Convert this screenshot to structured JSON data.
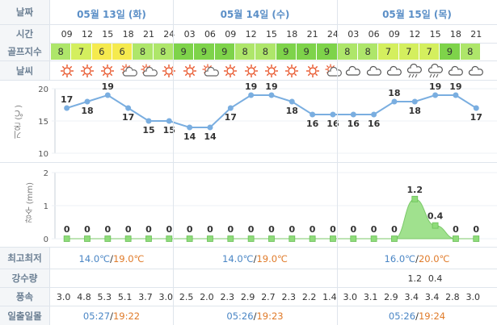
{
  "labels": {
    "date": "날짜",
    "time": "시간",
    "golf": "골프지수",
    "weather": "날씨",
    "temp_axis": "기온 (℃)",
    "rain_axis": "강수 (mm)",
    "minmax": "최고최저",
    "rain": "강수량",
    "wind": "풍속",
    "sun": "일출일몰"
  },
  "days": [
    {
      "label": "05월 13일 (화)",
      "min": "14.0℃",
      "sep": "/",
      "max": "19.0℃",
      "sunrise": "05:27",
      "sunset": "19:22"
    },
    {
      "label": "05월 14일 (수)",
      "min": "14.0℃",
      "sep": "/",
      "max": "19.0℃",
      "sunrise": "05:26",
      "sunset": "19:23"
    },
    {
      "label": "05월 15일 (목)",
      "min": "16.0℃",
      "sep": "/",
      "max": "20.0℃",
      "sunrise": "05:26",
      "sunset": "19:24"
    }
  ],
  "sun_sep": "/",
  "hours": [
    "09",
    "12",
    "15",
    "18",
    "21",
    "24",
    "03",
    "06",
    "09",
    "12",
    "15",
    "18",
    "21",
    "24",
    "03",
    "06",
    "09",
    "12",
    "15",
    "18",
    "21"
  ],
  "golf": [
    8,
    7,
    6,
    6,
    8,
    8,
    9,
    9,
    9,
    8,
    8,
    9,
    9,
    9,
    8,
    8,
    7,
    7,
    7,
    9,
    8
  ],
  "golf_colors": {
    "9": "#7ed34a",
    "8": "#aee66a",
    "7": "#d4ef5e",
    "6": "#f5ea4e"
  },
  "weather": [
    "sunny",
    "sunny",
    "sunny",
    "partly-cloudy",
    "partly-cloudy",
    "sunny",
    "sunny",
    "partly-cloudy",
    "sunny",
    "sunny",
    "sunny",
    "sunny",
    "sunny",
    "partly-cloudy",
    "cloudy",
    "cloudy",
    "cloudy",
    "rain",
    "rain",
    "cloudy",
    "cloudy"
  ],
  "wind": [
    "3.0",
    "4.8",
    "5.3",
    "5.1",
    "3.7",
    "3.0",
    "2.5",
    "2.0",
    "2.3",
    "2.9",
    "2.7",
    "2.3",
    "2.2",
    "1.4",
    "3.0",
    "3.1",
    "2.9",
    "3.4",
    "3.4",
    "2.8",
    "3.0"
  ],
  "rain_amounts": [
    "",
    "",
    "",
    "",
    "",
    "",
    "",
    "",
    "",
    "",
    "",
    "",
    "",
    "",
    "",
    "",
    "",
    "1.2",
    "0.4",
    "",
    ""
  ],
  "chart_data": [
    {
      "type": "line",
      "title": "",
      "ylabel": "기온 (℃)",
      "ylim": [
        10,
        20
      ],
      "yticks": [
        20,
        15,
        10
      ],
      "x": [
        "09",
        "12",
        "15",
        "18",
        "21",
        "24",
        "03",
        "06",
        "09",
        "12",
        "15",
        "18",
        "21",
        "24",
        "03",
        "06",
        "09",
        "12",
        "15",
        "18",
        "21"
      ],
      "values": [
        17,
        18,
        19,
        17,
        15,
        15,
        14,
        14,
        17,
        19,
        19,
        18,
        16,
        16,
        16,
        16,
        18,
        18,
        19,
        19,
        17
      ],
      "color": "#7aaee0"
    },
    {
      "type": "area",
      "title": "",
      "ylabel": "강수 (mm)",
      "ylim": [
        0,
        2
      ],
      "yticks": [
        2,
        1,
        0
      ],
      "x": [
        "09",
        "12",
        "15",
        "18",
        "21",
        "24",
        "03",
        "06",
        "09",
        "12",
        "15",
        "18",
        "21",
        "24",
        "03",
        "06",
        "09",
        "12",
        "15",
        "18",
        "21"
      ],
      "values": [
        0,
        0,
        0,
        0,
        0,
        0,
        0,
        0,
        0,
        0,
        0,
        0,
        0,
        0,
        0,
        0,
        0,
        1.2,
        0.4,
        0,
        0
      ],
      "color": "#8fdc7a"
    }
  ]
}
